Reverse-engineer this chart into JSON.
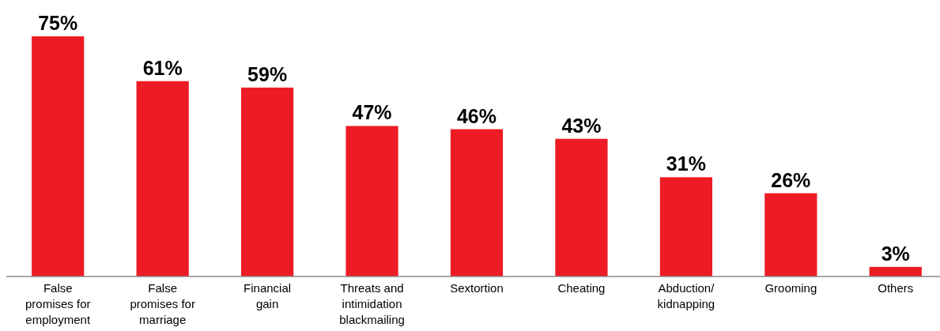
{
  "chart_data": {
    "type": "bar",
    "categories": [
      "False\npromises for\nemployment",
      "False\npromises for\nmarriage",
      "Financial\ngain",
      "Threats and\nintimidation\nblackmailing",
      "Sextortion",
      "Cheating",
      "Abduction/\nkidnapping",
      "Grooming",
      "Others"
    ],
    "values": [
      75,
      61,
      59,
      47,
      46,
      43,
      31,
      26,
      3
    ],
    "value_labels": [
      "75%",
      "61%",
      "59%",
      "47%",
      "46%",
      "43%",
      "31%",
      "26%",
      "3%"
    ],
    "color": "#ed1c24"
  }
}
